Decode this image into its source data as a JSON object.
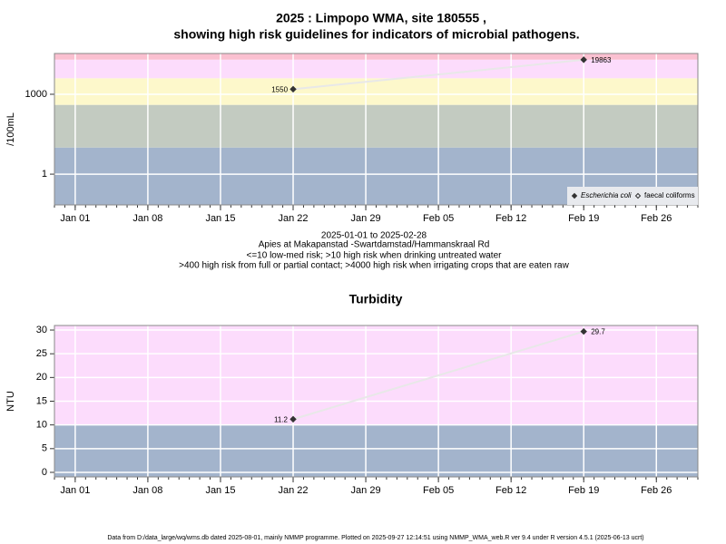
{
  "chart_data": [
    {
      "type": "line",
      "title": [
        "2025 : Limpopo WMA, site 180555 ,",
        "showing high risk guidelines for indicators of microbial pathogens."
      ],
      "ylabel": "/100mL",
      "log_scale": true,
      "grid": true,
      "notes": [
        "2025-01-01 to 2025-02-28",
        "Apies at Makapanstad -Swartdamstad/Hammanskraal Rd",
        "<=10 low-med risk; >10 high risk when drinking untreated water",
        ">400 high risk from full or partial contact; >4000 high risk when irrigating crops that are eaten raw"
      ],
      "xlim": [
        "2024-12-30",
        "2025-03-02"
      ],
      "xticks": [
        {
          "value": "2025-01-01",
          "label": "Jan 01"
        },
        {
          "value": "2025-01-08",
          "label": "Jan 08"
        },
        {
          "value": "2025-01-15",
          "label": "Jan 15"
        },
        {
          "value": "2025-01-22",
          "label": "Jan 22"
        },
        {
          "value": "2025-01-29",
          "label": "Jan 29"
        },
        {
          "value": "2025-02-05",
          "label": "Feb 05"
        },
        {
          "value": "2025-02-12",
          "label": "Feb 12"
        },
        {
          "value": "2025-02-19",
          "label": "Feb 19"
        },
        {
          "value": "2025-02-26",
          "label": "Feb 26"
        }
      ],
      "ylim": [
        0.07,
        34000
      ],
      "yticks": [
        1,
        1000
      ],
      "bands": [
        {
          "range": [
            0.07,
            10
          ],
          "color": "#a3b4cc"
        },
        {
          "range": [
            10,
            400
          ],
          "color": "#c3cbc1"
        },
        {
          "range": [
            400,
            4000
          ],
          "color": "#fdf8cb"
        },
        {
          "range": [
            4000,
            20000
          ],
          "color": "#fcdcfc"
        },
        {
          "range": [
            20000,
            34000
          ],
          "color": "#fac0d0"
        }
      ],
      "legend": "bottom-right",
      "x": [
        "2025-01-22",
        "2025-02-19"
      ],
      "series": [
        {
          "name": "Escherichia coli",
          "color": "#333333",
          "filled": true,
          "values": [
            1550,
            19863
          ]
        },
        {
          "name": "faecal coliforms",
          "color": "#333333",
          "filled": false,
          "values": [
            null,
            null
          ]
        }
      ]
    },
    {
      "type": "line",
      "title": "Turbidity",
      "ylabel": "NTU",
      "log_scale": false,
      "grid": true,
      "xlim": [
        "2024-12-30",
        "2025-03-02"
      ],
      "xticks": [
        {
          "value": "2025-01-01",
          "label": "Jan 01"
        },
        {
          "value": "2025-01-08",
          "label": "Jan 08"
        },
        {
          "value": "2025-01-15",
          "label": "Jan 15"
        },
        {
          "value": "2025-01-22",
          "label": "Jan 22"
        },
        {
          "value": "2025-01-29",
          "label": "Jan 29"
        },
        {
          "value": "2025-02-05",
          "label": "Feb 05"
        },
        {
          "value": "2025-02-12",
          "label": "Feb 12"
        },
        {
          "value": "2025-02-19",
          "label": "Feb 19"
        },
        {
          "value": "2025-02-26",
          "label": "Feb 26"
        }
      ],
      "ylim": [
        -0.96,
        30.96
      ],
      "yticks": [
        0,
        5,
        10,
        15,
        20,
        25,
        30
      ],
      "bands": [
        {
          "range": [
            -0.96,
            10
          ],
          "color": "#a3b4cc"
        },
        {
          "range": [
            10,
            30.96
          ],
          "color": "#fcdcfc"
        }
      ],
      "x": [
        "2025-01-22",
        "2025-02-19"
      ],
      "series": [
        {
          "name": "Turbidity",
          "color": "#333333",
          "filled": true,
          "values": [
            11.2,
            29.7
          ]
        }
      ]
    }
  ],
  "footer": "Data from D:/data_large/wq/wms.db dated 2025-08-01, mainly NMMP programme. Plotted on 2025-09-27 12:14:51 using NMMP_WMA_web.R ver 9.4 under R version 4.5.1 (2025-06-13 ucrt)"
}
